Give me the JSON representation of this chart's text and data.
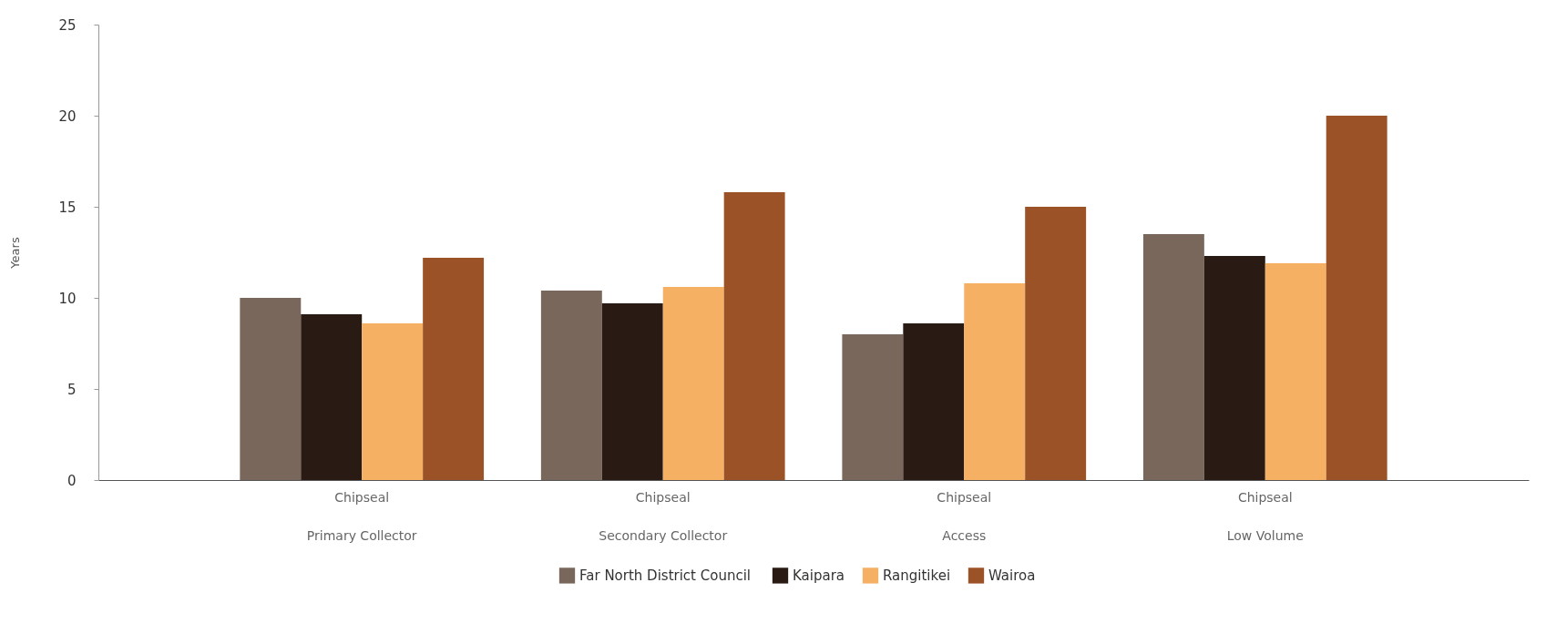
{
  "chart_data": {
    "type": "bar",
    "ylabel": "Years",
    "categories": [
      "Chipseal",
      "Chipseal",
      "Chipseal",
      "Chipseal"
    ],
    "annotations": [
      "Primary Collector",
      "Secondary Collector",
      "Access",
      "Low Volume"
    ],
    "series": [
      {
        "name": "Far North District  Council",
        "color": "#7a675c",
        "values": [
          10.0,
          10.4,
          8.0,
          13.5
        ]
      },
      {
        "name": "Kaipara",
        "color": "#2a1a14",
        "values": [
          9.1,
          9.7,
          8.6,
          12.3
        ]
      },
      {
        "name": "Rangitikei",
        "color": "#f5b063",
        "values": [
          8.6,
          10.6,
          10.8,
          11.9
        ]
      },
      {
        "name": "Wairoa",
        "color": "#9b5226",
        "values": [
          12.2,
          15.8,
          15.0,
          20.0
        ]
      }
    ],
    "ylim": [
      0,
      25
    ],
    "yticks": [
      0,
      5,
      10,
      15,
      20,
      25
    ],
    "grid": false,
    "legend": "bottom"
  }
}
